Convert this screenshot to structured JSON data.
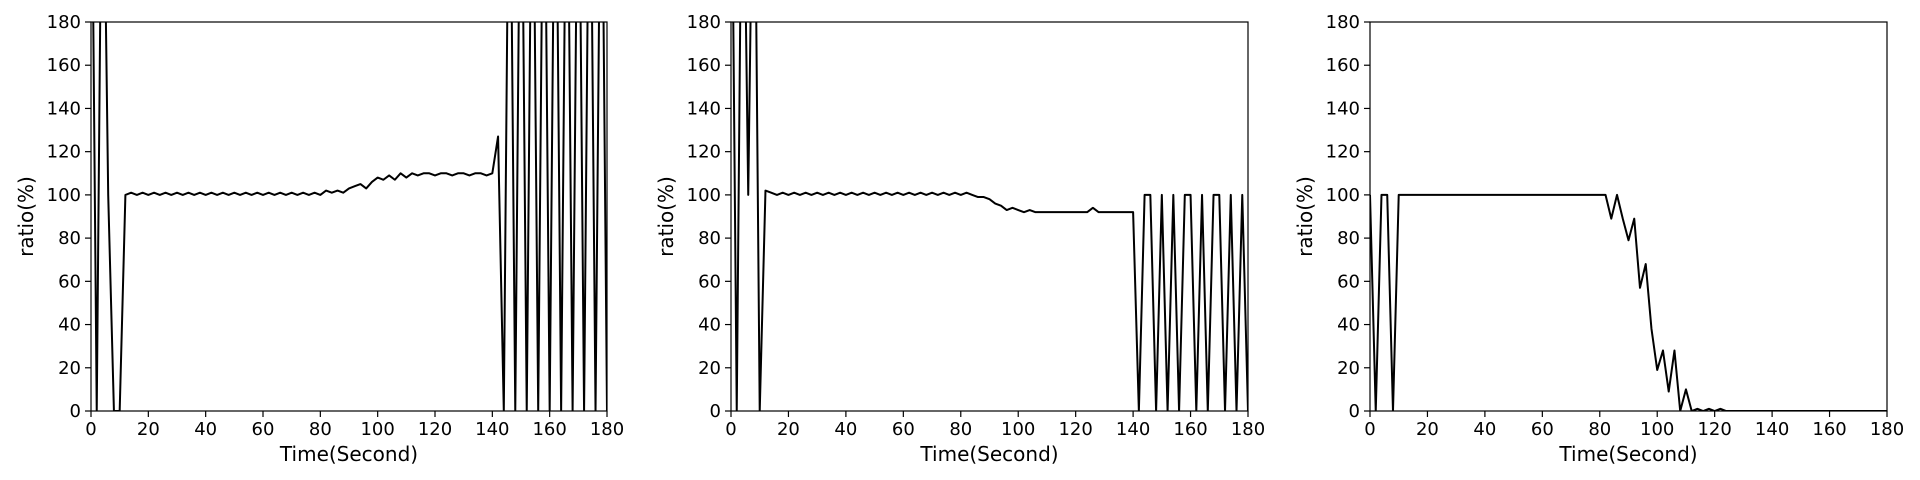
{
  "chart_data": [
    {
      "type": "line",
      "xlabel": "Time(Second)",
      "ylabel": "ratio(%)",
      "x": [
        0,
        2,
        4,
        6,
        8,
        10,
        12,
        14,
        16,
        18,
        20,
        22,
        24,
        26,
        28,
        30,
        32,
        34,
        36,
        38,
        40,
        42,
        44,
        46,
        48,
        50,
        52,
        54,
        56,
        58,
        60,
        62,
        64,
        66,
        68,
        70,
        72,
        74,
        76,
        78,
        80,
        82,
        84,
        86,
        88,
        90,
        92,
        94,
        96,
        98,
        100,
        102,
        104,
        106,
        108,
        110,
        112,
        114,
        116,
        118,
        120,
        122,
        124,
        126,
        128,
        130,
        132,
        134,
        136,
        138,
        140,
        142,
        144,
        146,
        148,
        150,
        152,
        154,
        156,
        158,
        160,
        162,
        164,
        166,
        168,
        170,
        172,
        174,
        176,
        178,
        180
      ],
      "series": [
        {
          "name": "ratio",
          "color": "#000000",
          "values": [
            300,
            0,
            300,
            100,
            0,
            0,
            100,
            101,
            100,
            101,
            100,
            101,
            100,
            101,
            100,
            101,
            100,
            101,
            100,
            101,
            100,
            101,
            100,
            101,
            100,
            101,
            100,
            101,
            100,
            101,
            100,
            101,
            100,
            101,
            100,
            101,
            100,
            101,
            100,
            101,
            100,
            102,
            101,
            102,
            101,
            103,
            104,
            105,
            103,
            106,
            108,
            107,
            109,
            107,
            110,
            108,
            110,
            109,
            110,
            110,
            109,
            110,
            110,
            109,
            110,
            110,
            109,
            110,
            110,
            109,
            110,
            127,
            0,
            300,
            0,
            300,
            0,
            300,
            0,
            300,
            0,
            300,
            0,
            300,
            0,
            300,
            0,
            300,
            0,
            300,
            0
          ]
        }
      ],
      "xlim": [
        0,
        180
      ],
      "ylim": [
        0,
        180
      ],
      "xticks": [
        0,
        20,
        40,
        60,
        80,
        100,
        120,
        140,
        160,
        180
      ],
      "yticks": [
        0,
        20,
        40,
        60,
        80,
        100,
        120,
        140,
        160,
        180
      ]
    },
    {
      "type": "line",
      "xlabel": "Time(Second)",
      "ylabel": "ratio(%)",
      "x": [
        0,
        2,
        4,
        6,
        8,
        10,
        12,
        14,
        16,
        18,
        20,
        22,
        24,
        26,
        28,
        30,
        32,
        34,
        36,
        38,
        40,
        42,
        44,
        46,
        48,
        50,
        52,
        54,
        56,
        58,
        60,
        62,
        64,
        66,
        68,
        70,
        72,
        74,
        76,
        78,
        80,
        82,
        84,
        86,
        88,
        90,
        92,
        94,
        96,
        98,
        100,
        102,
        104,
        106,
        108,
        110,
        112,
        114,
        116,
        118,
        120,
        122,
        124,
        126,
        128,
        130,
        132,
        134,
        136,
        138,
        140,
        142,
        144,
        146,
        148,
        150,
        152,
        154,
        156,
        158,
        160,
        162,
        164,
        166,
        168,
        170,
        172,
        174,
        176,
        178,
        180
      ],
      "series": [
        {
          "name": "ratio",
          "color": "#000000",
          "values": [
            300,
            0,
            300,
            100,
            300,
            0,
            102,
            101,
            100,
            101,
            100,
            101,
            100,
            101,
            100,
            101,
            100,
            101,
            100,
            101,
            100,
            101,
            100,
            101,
            100,
            101,
            100,
            101,
            100,
            101,
            100,
            101,
            100,
            101,
            100,
            101,
            100,
            101,
            100,
            101,
            100,
            101,
            100,
            99,
            99,
            98,
            96,
            95,
            93,
            94,
            93,
            92,
            93,
            92,
            92,
            92,
            92,
            92,
            92,
            92,
            92,
            92,
            92,
            94,
            92,
            92,
            92,
            92,
            92,
            92,
            92,
            0,
            100,
            100,
            0,
            100,
            0,
            100,
            0,
            100,
            100,
            0,
            100,
            0,
            100,
            100,
            0,
            100,
            0,
            100,
            0
          ]
        }
      ],
      "xlim": [
        0,
        180
      ],
      "ylim": [
        0,
        180
      ],
      "xticks": [
        0,
        20,
        40,
        60,
        80,
        100,
        120,
        140,
        160,
        180
      ],
      "yticks": [
        0,
        20,
        40,
        60,
        80,
        100,
        120,
        140,
        160,
        180
      ]
    },
    {
      "type": "line",
      "xlabel": "Time(Second)",
      "ylabel": "ratio(%)",
      "x": [
        0,
        2,
        4,
        6,
        8,
        10,
        12,
        14,
        16,
        18,
        20,
        22,
        24,
        26,
        28,
        30,
        32,
        34,
        36,
        38,
        40,
        42,
        44,
        46,
        48,
        50,
        52,
        54,
        56,
        58,
        60,
        62,
        64,
        66,
        68,
        70,
        72,
        74,
        76,
        78,
        80,
        82,
        84,
        86,
        88,
        90,
        92,
        94,
        96,
        98,
        100,
        102,
        104,
        106,
        108,
        110,
        112,
        114,
        116,
        118,
        120,
        122,
        124,
        126,
        128,
        130,
        132,
        134,
        136,
        138,
        140,
        142,
        144,
        146,
        148,
        150,
        152,
        154,
        156,
        158,
        160,
        162,
        164,
        166,
        168,
        170,
        172,
        174,
        176,
        178,
        180
      ],
      "series": [
        {
          "name": "ratio",
          "color": "#000000",
          "values": [
            100,
            0,
            100,
            100,
            0,
            100,
            100,
            100,
            100,
            100,
            100,
            100,
            100,
            100,
            100,
            100,
            100,
            100,
            100,
            100,
            100,
            100,
            100,
            100,
            100,
            100,
            100,
            100,
            100,
            100,
            100,
            100,
            100,
            100,
            100,
            100,
            100,
            100,
            100,
            100,
            100,
            100,
            89,
            100,
            89,
            79,
            89,
            57,
            68,
            38,
            19,
            28,
            9,
            28,
            0,
            10,
            0,
            1,
            0,
            1,
            0,
            1,
            0,
            0,
            0,
            0,
            0,
            0,
            0,
            0,
            0,
            0,
            0,
            0,
            0,
            0,
            0,
            0,
            0,
            0,
            0,
            0,
            0,
            0,
            0,
            0,
            0,
            0,
            0,
            0,
            0
          ]
        }
      ],
      "xlim": [
        0,
        180
      ],
      "ylim": [
        0,
        180
      ],
      "xticks": [
        0,
        20,
        40,
        60,
        80,
        100,
        120,
        140,
        160,
        180
      ],
      "yticks": [
        0,
        20,
        40,
        60,
        80,
        100,
        120,
        140,
        160,
        180
      ]
    }
  ]
}
